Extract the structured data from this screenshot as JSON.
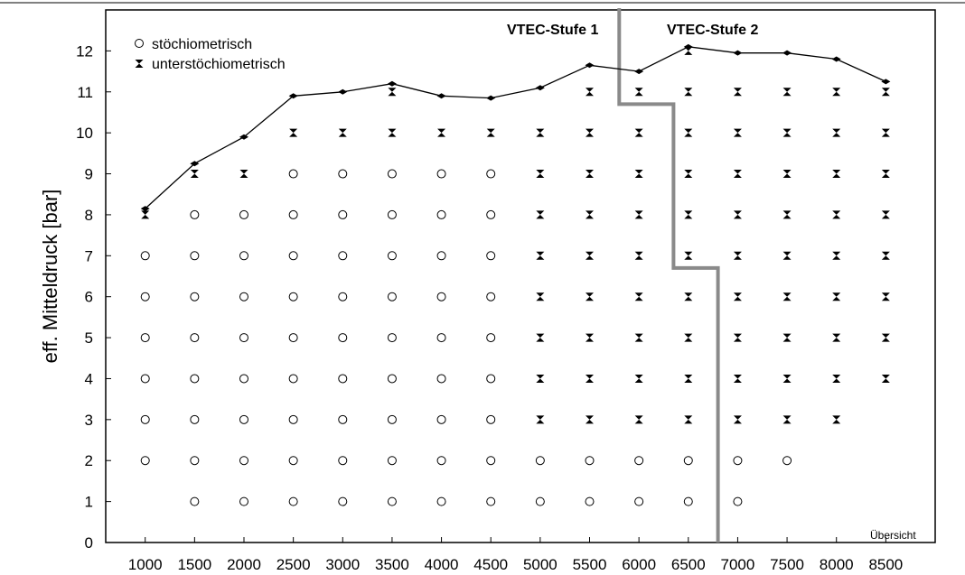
{
  "chart_data": {
    "type": "scatter",
    "ylabel": "eff. Mitteldruck [bar]",
    "xlabel": "",
    "x_ticks": [
      1000,
      1500,
      2000,
      2500,
      3000,
      3500,
      4000,
      4500,
      5000,
      5500,
      6000,
      6500,
      7000,
      7500,
      8000,
      8500
    ],
    "y_ticks": [
      0,
      1,
      2,
      3,
      4,
      5,
      6,
      7,
      8,
      9,
      10,
      11,
      12
    ],
    "xlim": [
      600,
      9000
    ],
    "ylim": [
      0,
      13
    ],
    "grid": false,
    "legend_position": "top-left",
    "legend": [
      {
        "label": "stöchiometrisch",
        "marker": "circle"
      },
      {
        "label": "unterstöchiometrisch",
        "marker": "hourglass"
      }
    ],
    "stoich_points": [
      [
        1000,
        2
      ],
      [
        1000,
        3
      ],
      [
        1000,
        4
      ],
      [
        1000,
        5
      ],
      [
        1000,
        6
      ],
      [
        1000,
        7
      ],
      [
        1500,
        1
      ],
      [
        1500,
        2
      ],
      [
        1500,
        3
      ],
      [
        1500,
        4
      ],
      [
        1500,
        5
      ],
      [
        1500,
        6
      ],
      [
        1500,
        7
      ],
      [
        1500,
        8
      ],
      [
        2000,
        1
      ],
      [
        2000,
        2
      ],
      [
        2000,
        3
      ],
      [
        2000,
        4
      ],
      [
        2000,
        5
      ],
      [
        2000,
        6
      ],
      [
        2000,
        7
      ],
      [
        2000,
        8
      ],
      [
        2500,
        1
      ],
      [
        2500,
        2
      ],
      [
        2500,
        3
      ],
      [
        2500,
        4
      ],
      [
        2500,
        5
      ],
      [
        2500,
        6
      ],
      [
        2500,
        7
      ],
      [
        2500,
        8
      ],
      [
        2500,
        9
      ],
      [
        3000,
        1
      ],
      [
        3000,
        2
      ],
      [
        3000,
        3
      ],
      [
        3000,
        4
      ],
      [
        3000,
        5
      ],
      [
        3000,
        6
      ],
      [
        3000,
        7
      ],
      [
        3000,
        8
      ],
      [
        3000,
        9
      ],
      [
        3500,
        1
      ],
      [
        3500,
        2
      ],
      [
        3500,
        3
      ],
      [
        3500,
        4
      ],
      [
        3500,
        5
      ],
      [
        3500,
        6
      ],
      [
        3500,
        7
      ],
      [
        3500,
        8
      ],
      [
        3500,
        9
      ],
      [
        4000,
        1
      ],
      [
        4000,
        2
      ],
      [
        4000,
        3
      ],
      [
        4000,
        4
      ],
      [
        4000,
        5
      ],
      [
        4000,
        6
      ],
      [
        4000,
        7
      ],
      [
        4000,
        8
      ],
      [
        4000,
        9
      ],
      [
        4500,
        1
      ],
      [
        4500,
        2
      ],
      [
        4500,
        3
      ],
      [
        4500,
        4
      ],
      [
        4500,
        5
      ],
      [
        4500,
        6
      ],
      [
        4500,
        7
      ],
      [
        4500,
        8
      ],
      [
        4500,
        9
      ],
      [
        5000,
        1
      ],
      [
        5000,
        2
      ],
      [
        5500,
        1
      ],
      [
        5500,
        2
      ],
      [
        6000,
        1
      ],
      [
        6000,
        2
      ],
      [
        6500,
        1
      ],
      [
        6500,
        2
      ],
      [
        7000,
        1
      ],
      [
        7000,
        2
      ],
      [
        7500,
        2
      ]
    ],
    "substoich_points": [
      [
        1000,
        8
      ],
      [
        1500,
        9
      ],
      [
        2000,
        9
      ],
      [
        2500,
        10
      ],
      [
        3000,
        10
      ],
      [
        3500,
        10
      ],
      [
        3500,
        11
      ],
      [
        4000,
        10
      ],
      [
        4500,
        10
      ],
      [
        5000,
        3
      ],
      [
        5000,
        4
      ],
      [
        5000,
        5
      ],
      [
        5000,
        6
      ],
      [
        5000,
        7
      ],
      [
        5000,
        8
      ],
      [
        5000,
        9
      ],
      [
        5000,
        10
      ],
      [
        5500,
        3
      ],
      [
        5500,
        4
      ],
      [
        5500,
        5
      ],
      [
        5500,
        6
      ],
      [
        5500,
        7
      ],
      [
        5500,
        8
      ],
      [
        5500,
        9
      ],
      [
        5500,
        10
      ],
      [
        5500,
        11
      ],
      [
        6000,
        3
      ],
      [
        6000,
        4
      ],
      [
        6000,
        5
      ],
      [
        6000,
        6
      ],
      [
        6000,
        7
      ],
      [
        6000,
        8
      ],
      [
        6000,
        9
      ],
      [
        6000,
        10
      ],
      [
        6000,
        11
      ],
      [
        6500,
        3
      ],
      [
        6500,
        4
      ],
      [
        6500,
        5
      ],
      [
        6500,
        6
      ],
      [
        6500,
        7
      ],
      [
        6500,
        8
      ],
      [
        6500,
        9
      ],
      [
        6500,
        10
      ],
      [
        6500,
        11
      ],
      [
        6500,
        12
      ],
      [
        7000,
        3
      ],
      [
        7000,
        4
      ],
      [
        7000,
        5
      ],
      [
        7000,
        6
      ],
      [
        7000,
        7
      ],
      [
        7000,
        8
      ],
      [
        7000,
        9
      ],
      [
        7000,
        10
      ],
      [
        7000,
        11
      ],
      [
        7500,
        3
      ],
      [
        7500,
        4
      ],
      [
        7500,
        5
      ],
      [
        7500,
        6
      ],
      [
        7500,
        7
      ],
      [
        7500,
        8
      ],
      [
        7500,
        9
      ],
      [
        7500,
        10
      ],
      [
        7500,
        11
      ],
      [
        8000,
        3
      ],
      [
        8000,
        4
      ],
      [
        8000,
        5
      ],
      [
        8000,
        6
      ],
      [
        8000,
        7
      ],
      [
        8000,
        8
      ],
      [
        8000,
        9
      ],
      [
        8000,
        10
      ],
      [
        8000,
        11
      ],
      [
        8500,
        4
      ],
      [
        8500,
        5
      ],
      [
        8500,
        6
      ],
      [
        8500,
        7
      ],
      [
        8500,
        8
      ],
      [
        8500,
        9
      ],
      [
        8500,
        10
      ],
      [
        8500,
        11
      ]
    ],
    "full_load_line": {
      "x": [
        1000,
        1500,
        2000,
        2500,
        3000,
        3500,
        4000,
        4500,
        5000,
        5500,
        6000,
        6500,
        7000,
        7500,
        8000,
        8500
      ],
      "y": [
        8.15,
        9.25,
        9.9,
        10.9,
        11.0,
        11.2,
        10.9,
        10.85,
        11.1,
        11.65,
        11.5,
        12.1,
        11.95,
        11.95,
        11.8,
        11.25
      ]
    },
    "stage_boundary": {
      "x": [
        5800,
        5800,
        6350,
        6350,
        6800,
        6800
      ],
      "y": [
        13.2,
        10.7,
        10.7,
        6.7,
        6.7,
        0
      ]
    },
    "annotations": {
      "stage1": "VTEC-Stufe 1",
      "stage2": "VTEC-Stufe 2",
      "note": "Übersicht"
    }
  }
}
